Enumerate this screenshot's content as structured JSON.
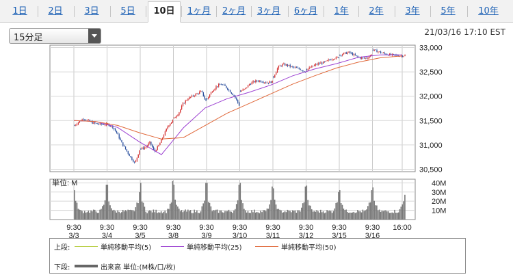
{
  "tabs": [
    "1日",
    "2日",
    "3日",
    "5日",
    "10日",
    "1ヶ月",
    "2ヶ月",
    "3ヶ月",
    "6ヶ月",
    "1年",
    "2年",
    "3年",
    "5年",
    "10年"
  ],
  "active_tab": "10日",
  "interval": {
    "selected": "15分足"
  },
  "timestamp": "21/03/16 17:10 EST",
  "legend": {
    "upper_label": "上段:",
    "lower_label": "下段:",
    "ma": [
      {
        "label": "単純移動平均(5)",
        "color": "#b5cc3c"
      },
      {
        "label": "単純移動平均(25)",
        "color": "#9b3fd1"
      },
      {
        "label": "単純移動平均(50)",
        "color": "#e0683a"
      }
    ],
    "volume": {
      "label": "出来高 単位:(M株/口/枚)",
      "color": "#666666"
    }
  },
  "colors": {
    "up": "#d32f2f",
    "down": "#2a4f9e",
    "volume": "#777777"
  },
  "chart_data": [
    {
      "type": "candlestick",
      "title": "",
      "y_tick_labels": [
        "33,000",
        "32,500",
        "32,000",
        "31,500",
        "31,000",
        "30,500"
      ],
      "ylim": [
        30450,
        33050
      ],
      "x_tick_labels": [
        {
          "time": "9:30",
          "date": "3/3"
        },
        {
          "time": "9:30",
          "date": "3/4"
        },
        {
          "time": "9:30",
          "date": "3/5"
        },
        {
          "time": "9:30",
          "date": "3/8"
        },
        {
          "time": "9:30",
          "date": "3/9"
        },
        {
          "time": "9:30",
          "date": "3/10"
        },
        {
          "time": "9:30",
          "date": "3/11"
        },
        {
          "time": "9:30",
          "date": "3/12"
        },
        {
          "time": "9:30",
          "date": "3/15"
        },
        {
          "time": "9:30",
          "date": "3/16"
        },
        {
          "time": "16:00",
          "date": ""
        }
      ],
      "days": [
        "3/3",
        "3/4",
        "3/5",
        "3/8",
        "3/9",
        "3/10",
        "3/11",
        "3/12",
        "3/15",
        "3/16"
      ],
      "close_path": [
        [
          31400,
          31480,
          31540,
          31500,
          31450,
          31430,
          31420,
          31420
        ],
        [
          31420,
          31380,
          31250,
          31050,
          30900,
          30750,
          30620,
          30900
        ],
        [
          30920,
          30950,
          31050,
          30860,
          31000,
          31200,
          31400,
          31500
        ],
        [
          31550,
          31650,
          31850,
          31950,
          32000,
          32050,
          32100,
          31900
        ],
        [
          31950,
          32100,
          32200,
          32250,
          32200,
          32100,
          32000,
          31820
        ],
        [
          32100,
          32150,
          32250,
          32300,
          32320,
          32300,
          32280,
          32300
        ],
        [
          32400,
          32600,
          32650,
          32640,
          32600,
          32580,
          32550,
          32500
        ],
        [
          32550,
          32600,
          32650,
          32680,
          32700,
          32750,
          32780,
          32800
        ],
        [
          32850,
          32880,
          32900,
          32850,
          32800,
          32780,
          32790,
          32860
        ],
        [
          32950,
          32920,
          32890,
          32860,
          32850,
          32840,
          32830,
          32840
        ]
      ],
      "ma": [
        {
          "label": "単純移動平均(25)",
          "color": "#9b3fd1",
          "values": [
            31500,
            31480,
            31360,
            31060,
            30800,
            31350,
            31760,
            31950,
            32080,
            32230,
            32420,
            32560,
            32670,
            32800,
            32850,
            32850
          ]
        },
        {
          "label": "単純移動平均(50)",
          "color": "#e0683a",
          "values": [
            31500,
            31480,
            31400,
            31250,
            31120,
            31150,
            31400,
            31650,
            31850,
            32050,
            32250,
            32420,
            32580,
            32700,
            32790,
            32830
          ]
        }
      ]
    },
    {
      "type": "bar",
      "title": "",
      "unit_label": "単位: M",
      "y_tick_labels": [
        "40M",
        "30M",
        "20M",
        "10M"
      ],
      "ylim": [
        0,
        44
      ],
      "daily_volume_profile": {
        "open_spike_M": [
          32,
          38,
          40,
          38,
          40,
          40,
          34,
          37,
          32,
          35
        ],
        "close_spike_M": [
          38,
          30,
          42,
          40,
          38,
          36,
          36,
          30,
          32,
          27
        ],
        "midday_M": 7
      }
    }
  ]
}
